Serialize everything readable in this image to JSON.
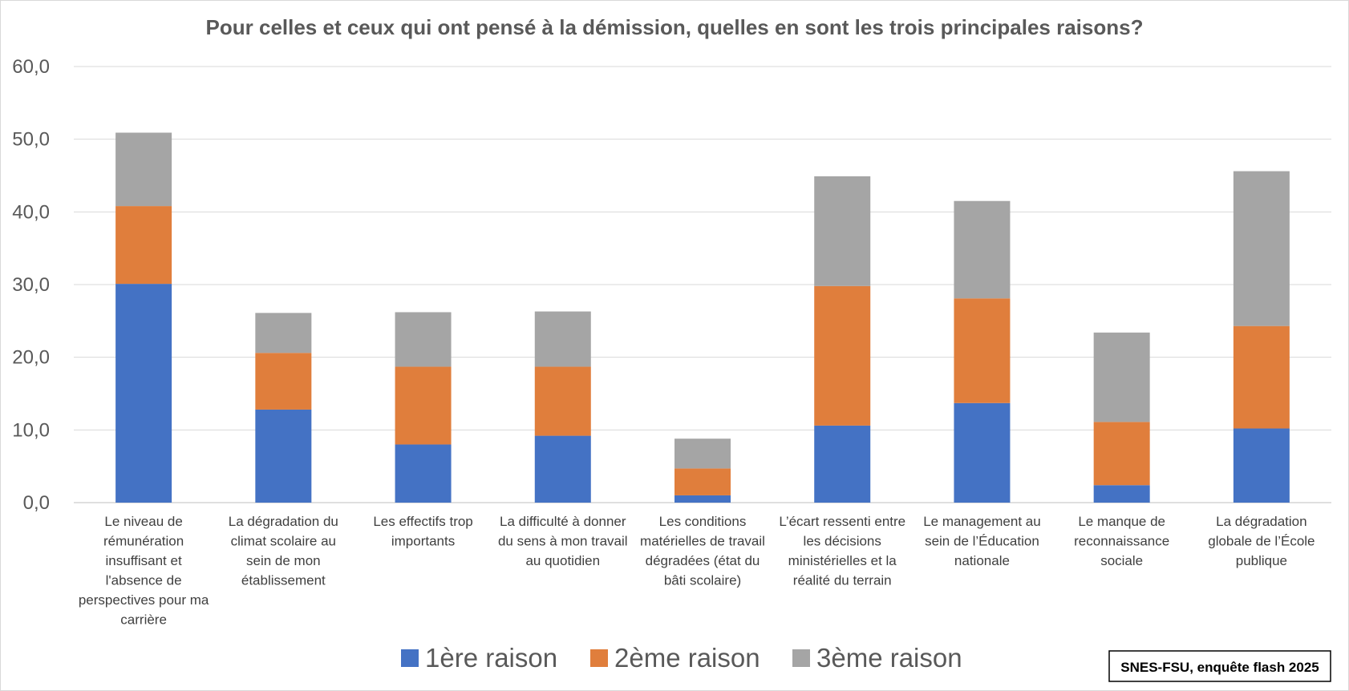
{
  "chart_data": {
    "type": "bar",
    "stacked": true,
    "title": "Pour celles et ceux qui ont pensé à la démission, quelles en sont les trois principales raisons?",
    "xlabel": "",
    "ylabel": "",
    "ylim": [
      0,
      60
    ],
    "yticks": [
      "0,0",
      "10,0",
      "20,0",
      "30,0",
      "40,0",
      "50,0",
      "60,0"
    ],
    "grid": true,
    "legend_position": "bottom",
    "categories": [
      "Le niveau de rémunération insuffisant et l'absence de perspectives pour ma carrière",
      "La dégradation du climat scolaire au sein de mon établissement",
      "Les effectifs trop importants",
      "La difficulté à donner du sens à mon travail au quotidien",
      "Les conditions matérielles de travail dégradées (état du bâti scolaire)",
      "L’écart ressenti entre les décisions ministérielles et la réalité du terrain",
      "Le management au sein de l’Éducation nationale",
      "Le manque de reconnaissance sociale",
      "La dégradation globale de l’École publique"
    ],
    "category_lines": [
      [
        "Le niveau de",
        "rémunération",
        "insuffisant et",
        "l'absence de",
        "perspectives pour ma",
        "carrière"
      ],
      [
        "La dégradation du",
        "climat scolaire au",
        "sein de mon",
        "établissement"
      ],
      [
        "Les effectifs trop",
        "importants"
      ],
      [
        "La difficulté à donner",
        "du sens à mon travail",
        "au quotidien"
      ],
      [
        "Les conditions",
        "matérielles de travail",
        "dégradées (état du",
        "bâti scolaire)"
      ],
      [
        "L’écart ressenti entre",
        "les décisions",
        "ministérielles et la",
        "réalité du terrain"
      ],
      [
        "Le management au",
        "sein de l’Éducation",
        "nationale"
      ],
      [
        "Le manque de",
        "reconnaissance",
        "sociale"
      ],
      [
        "La dégradation",
        "globale de l’École",
        "publique"
      ]
    ],
    "series": [
      {
        "name": "1ère raison",
        "color": "#4472C4",
        "values": [
          30.1,
          12.8,
          8.0,
          9.2,
          1.0,
          10.6,
          13.7,
          2.4,
          10.2
        ]
      },
      {
        "name": "2ème raison",
        "color": "#E07E3C",
        "values": [
          10.7,
          7.8,
          10.7,
          9.5,
          3.7,
          19.2,
          14.4,
          8.7,
          14.1
        ]
      },
      {
        "name": "3ème raison",
        "color": "#A5A5A5",
        "values": [
          10.1,
          5.5,
          7.5,
          7.6,
          4.1,
          15.1,
          13.4,
          12.3,
          21.3
        ]
      }
    ]
  },
  "source_note": "SNES-FSU, enquête flash 2025"
}
